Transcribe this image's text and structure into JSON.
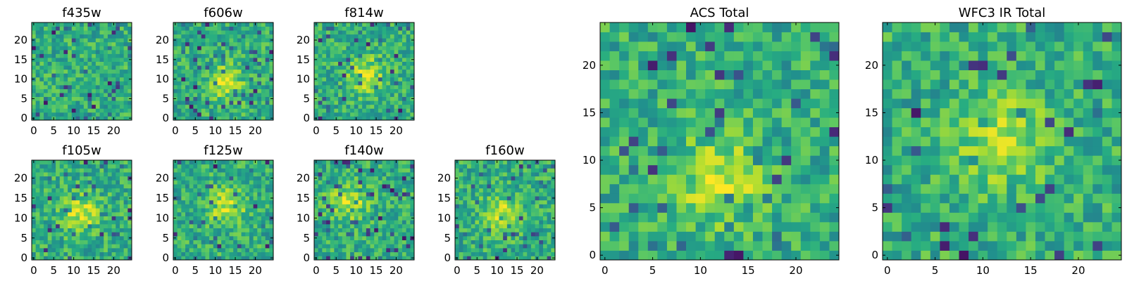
{
  "chart_data": [
    {
      "type": "heatmap",
      "title": "f435w",
      "xticks": [
        0,
        5,
        10,
        15,
        20
      ],
      "yticks": [
        0,
        5,
        10,
        15,
        20
      ],
      "xlim": [
        0,
        24
      ],
      "ylim": [
        0,
        24
      ],
      "grid_size": 25,
      "center": null,
      "seed": 11,
      "colormap": "viridis"
    },
    {
      "type": "heatmap",
      "title": "f606w",
      "xticks": [
        0,
        5,
        10,
        15,
        20
      ],
      "yticks": [
        0,
        5,
        10,
        15,
        20
      ],
      "xlim": [
        0,
        24
      ],
      "ylim": [
        0,
        24
      ],
      "grid_size": 25,
      "center": [
        12.5,
        9
      ],
      "seed": 23,
      "colormap": "viridis"
    },
    {
      "type": "heatmap",
      "title": "f814w",
      "xticks": [
        0,
        5,
        10,
        15,
        20
      ],
      "yticks": [
        0,
        5,
        10,
        15,
        20
      ],
      "xlim": [
        0,
        24
      ],
      "ylim": [
        0,
        24
      ],
      "grid_size": 25,
      "center": [
        12.5,
        11
      ],
      "seed": 37,
      "colormap": "viridis"
    },
    {
      "type": "heatmap",
      "title": "f105w",
      "xticks": [
        0,
        5,
        10,
        15,
        20
      ],
      "yticks": [
        0,
        5,
        10,
        15,
        20
      ],
      "xlim": [
        0,
        24
      ],
      "ylim": [
        0,
        24
      ],
      "grid_size": 25,
      "center": [
        12,
        11
      ],
      "seed": 41,
      "colormap": "viridis"
    },
    {
      "type": "heatmap",
      "title": "f125w",
      "xticks": [
        0,
        5,
        10,
        15,
        20
      ],
      "yticks": [
        0,
        5,
        10,
        15,
        20
      ],
      "xlim": [
        0,
        24
      ],
      "ylim": [
        0,
        24
      ],
      "grid_size": 25,
      "center": [
        13,
        13
      ],
      "seed": 53,
      "colormap": "viridis"
    },
    {
      "type": "heatmap",
      "title": "f140w",
      "xticks": [
        0,
        5,
        10,
        15,
        20
      ],
      "yticks": [
        0,
        5,
        10,
        15,
        20
      ],
      "xlim": [
        0,
        24
      ],
      "ylim": [
        0,
        24
      ],
      "grid_size": 25,
      "center": [
        8,
        14
      ],
      "seed": 67,
      "colormap": "viridis"
    },
    {
      "type": "heatmap",
      "title": "f160w",
      "xticks": [
        0,
        5,
        10,
        15,
        20
      ],
      "yticks": [
        0,
        5,
        10,
        15,
        20
      ],
      "xlim": [
        0,
        24
      ],
      "ylim": [
        0,
        24
      ],
      "grid_size": 25,
      "center": [
        11,
        11
      ],
      "seed": 79,
      "colormap": "viridis"
    },
    {
      "type": "heatmap",
      "title": "ACS Total",
      "xticks": [
        0,
        5,
        10,
        15,
        20
      ],
      "yticks": [
        0,
        5,
        10,
        15,
        20
      ],
      "xlim": [
        0,
        24
      ],
      "ylim": [
        0,
        24
      ],
      "grid_size": 25,
      "center": [
        12,
        8
      ],
      "seed": 97,
      "colormap": "viridis"
    },
    {
      "type": "heatmap",
      "title": "WFC3 IR Total",
      "xticks": [
        0,
        5,
        10,
        15,
        20
      ],
      "yticks": [
        0,
        5,
        10,
        15,
        20
      ],
      "xlim": [
        0,
        24
      ],
      "ylim": [
        0,
        24
      ],
      "grid_size": 25,
      "center": [
        12,
        12
      ],
      "seed": 113,
      "colormap": "viridis"
    }
  ]
}
